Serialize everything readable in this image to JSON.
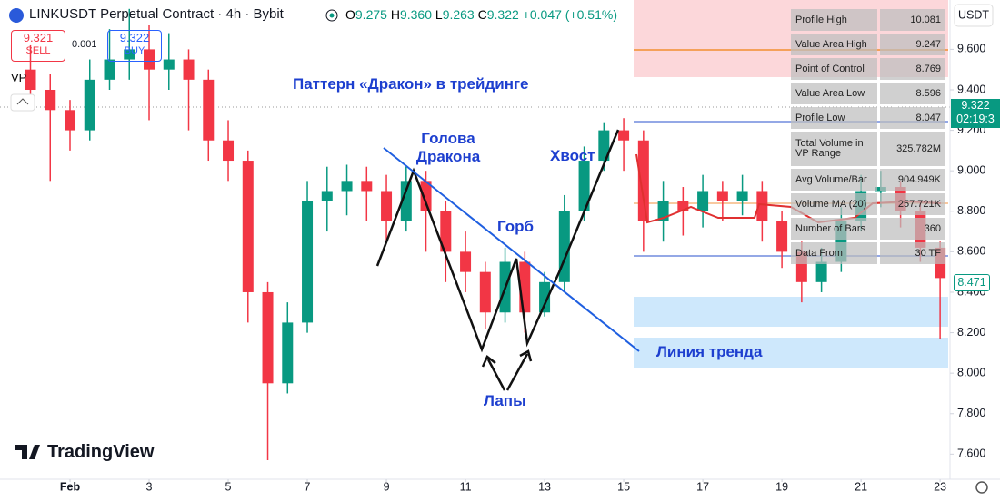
{
  "header": {
    "symbol": "LINKUSDT Perpetual Contract · 4h · Bybit",
    "open_label": "O",
    "open": "9.275",
    "high_label": "H",
    "high": "9.360",
    "low_label": "L",
    "low": "9.263",
    "close_label": "C",
    "close": "9.322",
    "change": "+0.047 (+0.51%)"
  },
  "order_panel": {
    "sell_price": "9.321",
    "sell_label": "SELL",
    "quantity": "0.001",
    "buy_price": "9.322",
    "buy_label": "BUY",
    "indicator": "VP"
  },
  "annotations": {
    "title": "Паттерн «Дракон» в трейдинге",
    "head": "Голова Дракона",
    "tail": "Хвост",
    "hump": "Горб",
    "legs": "Лапы",
    "trend_line": "Линия тренда"
  },
  "volume_profile": {
    "rows": [
      [
        "Profile High",
        "10.081"
      ],
      [
        "Value Area High",
        "9.247"
      ],
      [
        "Point of Control",
        "8.769"
      ],
      [
        "Value Area Low",
        "8.596"
      ],
      [
        "Profile Low",
        "8.047"
      ],
      [
        "Total Volume in VP Range",
        "325.782M"
      ],
      [
        "Avg Volume/Bar",
        "904.949K"
      ],
      [
        "Volume MA (20)",
        "257.721K"
      ],
      [
        "Number of Bars",
        "360"
      ],
      [
        "Data From",
        "30 TF"
      ]
    ]
  },
  "price_tags": {
    "last_price": "9.322",
    "countdown": "02:19:3",
    "indicator_value": "8.471"
  },
  "branding": {
    "name": "TradingView"
  },
  "chart_data": {
    "type": "candlestick",
    "y_axis_label": "USDT",
    "up_color": "#089981",
    "down_color": "#f23645",
    "grid": false,
    "x": [
      0,
      0.5,
      1,
      1.5,
      2,
      2.5,
      3,
      3.5,
      4,
      4.5,
      5,
      5.5,
      6,
      6.5,
      7,
      7.5,
      8,
      8.5,
      9,
      9.5,
      10,
      10.5,
      11,
      11.5,
      12,
      12.5,
      13,
      13.5,
      14,
      14.5,
      15,
      15.5,
      16,
      16.5,
      17,
      17.5,
      18,
      18.5,
      19,
      19.5,
      20,
      20.5,
      21,
      21.5,
      22,
      22.5,
      23
    ],
    "open": [
      9.5,
      9.4,
      9.3,
      9.2,
      9.45,
      9.55,
      9.6,
      9.5,
      9.55,
      9.45,
      9.15,
      9.05,
      8.4,
      7.95,
      8.25,
      8.85,
      8.9,
      8.95,
      8.9,
      8.75,
      8.95,
      8.8,
      8.6,
      8.5,
      8.3,
      8.55,
      8.3,
      8.45,
      8.8,
      9.05,
      9.2,
      9.15,
      8.75,
      8.85,
      8.8,
      8.9,
      8.85,
      8.9,
      8.75,
      8.6,
      8.45,
      8.55,
      8.75,
      8.9,
      8.92,
      8.8,
      8.62
    ],
    "high": [
      9.62,
      9.48,
      9.35,
      9.55,
      9.7,
      9.8,
      9.72,
      9.68,
      9.6,
      9.5,
      9.25,
      9.1,
      8.45,
      8.35,
      8.95,
      9.02,
      9.03,
      9.02,
      8.98,
      9.02,
      9.0,
      8.85,
      8.7,
      8.55,
      8.62,
      8.6,
      8.5,
      8.88,
      9.12,
      9.24,
      9.26,
      9.2,
      8.95,
      8.92,
      8.98,
      8.95,
      8.98,
      8.95,
      8.8,
      8.65,
      8.62,
      8.82,
      8.98,
      9.0,
      8.95,
      8.85,
      8.65
    ],
    "low": [
      9.3,
      8.95,
      9.1,
      9.15,
      9.4,
      9.45,
      9.25,
      9.4,
      9.2,
      9.05,
      8.95,
      8.25,
      7.57,
      7.9,
      8.2,
      8.7,
      8.78,
      8.75,
      8.65,
      8.7,
      8.6,
      8.45,
      8.4,
      8.22,
      8.25,
      8.2,
      8.28,
      8.4,
      8.75,
      9.0,
      9.0,
      8.6,
      8.65,
      8.68,
      8.72,
      8.75,
      8.78,
      8.65,
      8.52,
      8.35,
      8.4,
      8.5,
      8.7,
      8.82,
      8.72,
      8.55,
      8.17
    ],
    "close": [
      9.4,
      9.3,
      9.2,
      9.45,
      9.55,
      9.6,
      9.5,
      9.55,
      9.45,
      9.15,
      9.05,
      8.4,
      7.95,
      8.25,
      8.85,
      8.9,
      8.95,
      8.9,
      8.75,
      8.95,
      8.8,
      8.6,
      8.5,
      8.3,
      8.55,
      8.3,
      8.45,
      8.8,
      9.05,
      9.2,
      9.15,
      8.75,
      8.85,
      8.8,
      8.9,
      8.85,
      8.9,
      8.75,
      8.6,
      8.45,
      8.55,
      8.75,
      8.9,
      8.92,
      8.8,
      8.62,
      8.47
    ],
    "xlim": [
      -0.77,
      23.25
    ],
    "xticks": [
      {
        "value": 1,
        "label": "Feb"
      },
      3,
      5,
      7,
      9,
      11,
      13,
      15,
      17,
      19,
      21,
      23
    ],
    "ylim": [
      7.467,
      9.844
    ],
    "yticks": [
      {
        "value": 9.6,
        "label": "9.600"
      },
      {
        "value": 9.4,
        "label": "9.400"
      },
      {
        "value": 9.2,
        "label": "9.200"
      },
      {
        "value": 9,
        "label": "9.000"
      },
      {
        "value": 8.8,
        "label": "8.800"
      },
      {
        "value": 8.6,
        "label": "8.600"
      },
      {
        "value": 8.4,
        "label": "8.400"
      },
      {
        "value": 8.2,
        "label": "8.200"
      },
      {
        "value": 8,
        "label": "8.000"
      },
      {
        "value": 7.8,
        "label": "7.800"
      },
      {
        "value": 7.6,
        "label": "7.600"
      }
    ]
  }
}
